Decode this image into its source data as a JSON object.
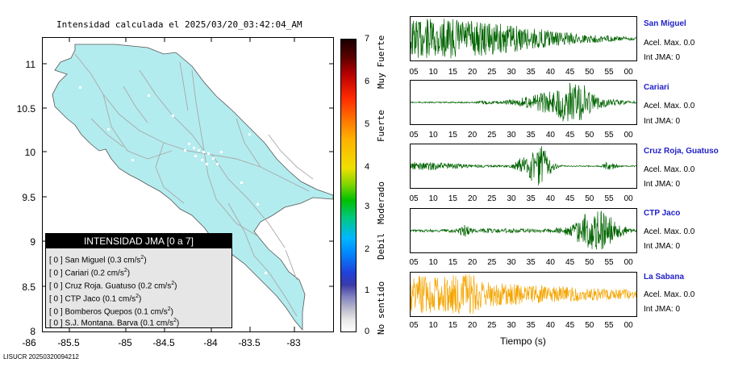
{
  "map": {
    "title": "Intensidad calculada el 2025/03/20_03:42:04_AM",
    "y_ticks": [
      "11",
      "10.5",
      "10",
      "9.5",
      "9",
      "8.5",
      "8"
    ],
    "x_ticks": [
      "-86",
      "-85.5",
      "-85",
      "-84.5",
      "-84",
      "-83.5",
      "-83"
    ],
    "land_color": "#b3ecee",
    "road_color": "#a8a8a8"
  },
  "legend": {
    "title": "INTENSIDAD JMA [0 a 7]",
    "unit_base": "cm/s",
    "unit_exp": "2",
    "rows": [
      {
        "code": "[ 0 ]",
        "name": "San Miguel",
        "value": "0.3"
      },
      {
        "code": "[ 0 ]",
        "name": "Cariari",
        "value": "0.2"
      },
      {
        "code": "[ 0 ]",
        "name": "Cruz Roja. Guatuso",
        "value": "0.2"
      },
      {
        "code": "[ 0 ]",
        "name": "CTP Jaco",
        "value": "0.1"
      },
      {
        "code": "[ 0 ]",
        "name": "Bomberos Quepos",
        "value": "0.1"
      },
      {
        "code": "[ 0 ]",
        "name": "S.J. Montana. Barva",
        "value": "0.1"
      }
    ]
  },
  "scale": {
    "numbers": [
      "7",
      "6",
      "5",
      "4",
      "3",
      "2",
      "1",
      "0"
    ],
    "words": [
      "Muy Fuerte",
      "Fuerte",
      "Moderado",
      "Debil",
      "No sentido"
    ]
  },
  "footer": {
    "id": "LISUCR 20250320094212"
  },
  "time_ticks": [
    "05",
    "10",
    "15",
    "20",
    "25",
    "30",
    "35",
    "40",
    "45",
    "50",
    "55",
    "00"
  ],
  "time_axis_label": "Tiempo (s)",
  "stations": [
    {
      "name": "San Miguel",
      "acel": "Acel. Max. 0.0",
      "int": "Int JMA: 0",
      "color": "#006400"
    },
    {
      "name": "Cariari",
      "acel": "Acel. Max. 0.0",
      "int": "Int JMA: 0",
      "color": "#006400"
    },
    {
      "name": "Cruz Roja, Guatuso",
      "acel": "Acel. Max. 0.0",
      "int": "Int JMA: 0",
      "color": "#006400"
    },
    {
      "name": "CTP Jaco",
      "acel": "Acel. Max. 0.0",
      "int": "Int JMA: 0",
      "color": "#006400"
    },
    {
      "name": "La Sabana",
      "acel": "Acel. Max. 0.0",
      "int": "Int JMA: 0",
      "color": "#f5a500"
    }
  ]
}
